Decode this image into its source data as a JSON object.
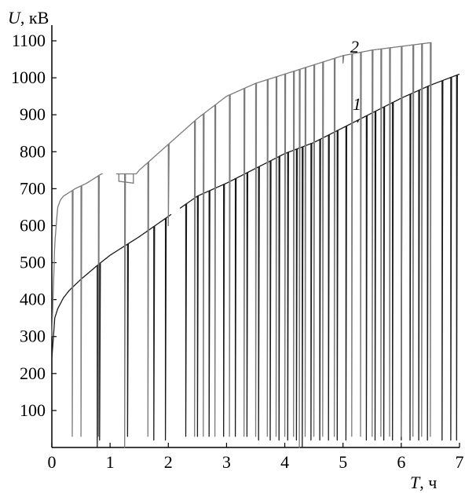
{
  "chart_data": {
    "type": "line",
    "title": "",
    "ylabel": {
      "var": "U",
      "unit": ", кВ"
    },
    "xlabel": {
      "var": "T",
      "unit": ", ч"
    },
    "xlim": [
      0,
      7
    ],
    "ylim": [
      0,
      1100
    ],
    "x_ticks": [
      0,
      1,
      2,
      3,
      4,
      5,
      6,
      7
    ],
    "y_ticks": [
      100,
      200,
      300,
      400,
      500,
      600,
      700,
      800,
      900,
      1000,
      1100
    ],
    "grid": false,
    "colors": {
      "series_1": "#1a1a1a",
      "series_2": "#7a7a7a",
      "axes": "#000000"
    },
    "series": [
      {
        "name": "1",
        "trend": {
          "x": [
            0.0,
            0.05,
            0.1,
            0.2,
            0.3,
            0.5,
            0.8,
            1.0,
            1.5,
            2.0,
            2.5,
            3.0,
            3.5,
            4.0,
            4.5,
            5.0,
            5.5,
            6.0,
            6.5,
            7.0
          ],
          "y": [
            240,
            350,
            375,
            405,
            425,
            455,
            495,
            520,
            570,
            625,
            680,
            715,
            755,
            795,
            825,
            865,
            905,
            945,
            980,
            1010
          ]
        },
        "gaps": [
          [
            2.05,
            2.2
          ]
        ],
        "drops": [
          {
            "x": 0.78,
            "y": 0
          },
          {
            "x": 0.82,
            "y": 20
          },
          {
            "x": 1.3,
            "y": 30
          },
          {
            "x": 1.75,
            "y": 20
          },
          {
            "x": 1.95,
            "y": 20
          },
          {
            "x": 2.3,
            "y": 30
          },
          {
            "x": 2.5,
            "y": 30
          },
          {
            "x": 2.7,
            "y": 30
          },
          {
            "x": 2.95,
            "y": 30
          },
          {
            "x": 3.15,
            "y": 30
          },
          {
            "x": 3.35,
            "y": 30
          },
          {
            "x": 3.55,
            "y": 20
          },
          {
            "x": 3.75,
            "y": 20
          },
          {
            "x": 3.9,
            "y": 20
          },
          {
            "x": 4.05,
            "y": 20
          },
          {
            "x": 4.2,
            "y": 20
          },
          {
            "x": 4.3,
            "y": 0
          },
          {
            "x": 4.45,
            "y": 20
          },
          {
            "x": 4.6,
            "y": 20
          },
          {
            "x": 4.75,
            "y": 20
          },
          {
            "x": 4.9,
            "y": 20
          },
          {
            "x": 5.05,
            "y": 20
          },
          {
            "x": 5.25,
            "y": 880
          },
          {
            "x": 5.4,
            "y": 20
          },
          {
            "x": 5.55,
            "y": 20
          },
          {
            "x": 5.7,
            "y": 20
          },
          {
            "x": 5.85,
            "y": 20
          },
          {
            "x": 6.0,
            "y": 20
          },
          {
            "x": 6.15,
            "y": 20
          },
          {
            "x": 6.3,
            "y": 20
          },
          {
            "x": 6.45,
            "y": 20
          },
          {
            "x": 6.7,
            "y": 20
          },
          {
            "x": 6.85,
            "y": 20
          },
          {
            "x": 6.95,
            "y": 20
          }
        ]
      },
      {
        "name": "2",
        "trend": {
          "x": [
            0.0,
            0.05,
            0.1,
            0.15,
            0.2,
            0.4,
            0.6,
            0.85,
            0.9,
            1.1,
            1.2,
            1.4,
            1.45,
            1.5,
            2.0,
            2.5,
            3.0,
            3.5,
            4.0,
            4.5,
            5.0,
            5.5,
            6.0,
            6.5
          ],
          "y": [
            300,
            550,
            650,
            670,
            680,
            700,
            715,
            740,
            740,
            740,
            740,
            740,
            740,
            750,
            820,
            890,
            950,
            985,
            1010,
            1035,
            1060,
            1075,
            1085,
            1095
          ]
        },
        "gaps": [
          [
            0.88,
            1.1
          ]
        ],
        "dip": {
          "x": [
            1.15,
            1.4
          ],
          "y": [
            720,
            715
          ]
        },
        "drops": [
          {
            "x": 0.35,
            "y": 30
          },
          {
            "x": 0.5,
            "y": 30
          },
          {
            "x": 0.8,
            "y": 30
          },
          {
            "x": 1.25,
            "y": 0
          },
          {
            "x": 1.65,
            "y": 30
          },
          {
            "x": 2.0,
            "y": 600
          },
          {
            "x": 2.45,
            "y": 30
          },
          {
            "x": 2.6,
            "y": 30
          },
          {
            "x": 2.8,
            "y": 30
          },
          {
            "x": 3.05,
            "y": 30
          },
          {
            "x": 3.3,
            "y": 30
          },
          {
            "x": 3.5,
            "y": 30
          },
          {
            "x": 3.7,
            "y": 30
          },
          {
            "x": 3.85,
            "y": 30
          },
          {
            "x": 4.0,
            "y": 30
          },
          {
            "x": 4.15,
            "y": 30
          },
          {
            "x": 4.25,
            "y": 0
          },
          {
            "x": 4.35,
            "y": 30
          },
          {
            "x": 4.5,
            "y": 30
          },
          {
            "x": 4.65,
            "y": 30
          },
          {
            "x": 4.85,
            "y": 30
          },
          {
            "x": 5.0,
            "y": 1040
          },
          {
            "x": 5.15,
            "y": 30
          },
          {
            "x": 5.3,
            "y": 30
          },
          {
            "x": 5.5,
            "y": 30
          },
          {
            "x": 5.65,
            "y": 30
          },
          {
            "x": 5.8,
            "y": 30
          },
          {
            "x": 6.0,
            "y": 30
          },
          {
            "x": 6.2,
            "y": 30
          },
          {
            "x": 6.35,
            "y": 30
          },
          {
            "x": 6.5,
            "y": 30
          }
        ]
      }
    ]
  }
}
